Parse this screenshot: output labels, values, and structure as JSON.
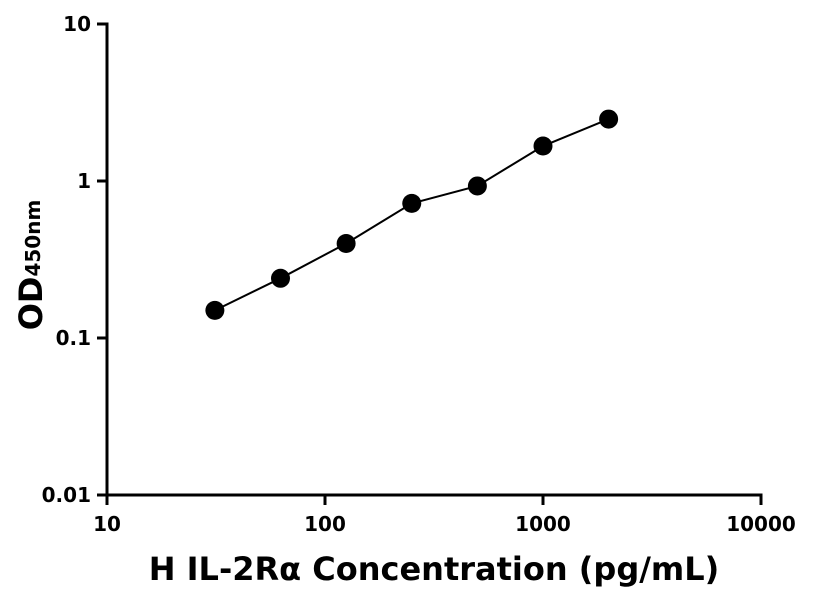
{
  "chart_data": {
    "type": "scatter",
    "xlabel": "H IL-2Rα Concentration (pg/mL)",
    "ylabel": "OD",
    "ylabel_sub": "450nm",
    "x": [
      31.25,
      62.5,
      125,
      250,
      500,
      1000,
      2000
    ],
    "series": [
      {
        "color": "#000000",
        "values": [
          0.15,
          0.24,
          0.4,
          0.72,
          0.93,
          1.67,
          2.48
        ]
      }
    ],
    "xlim": [
      10,
      10000
    ],
    "ylim": [
      0.01,
      10
    ],
    "xticks": [
      10,
      100,
      1000,
      10000
    ],
    "yticks": [
      0.01,
      0.1,
      1,
      10
    ],
    "xscale": "log",
    "yscale": "log",
    "fit_line": true,
    "grid": false
  }
}
